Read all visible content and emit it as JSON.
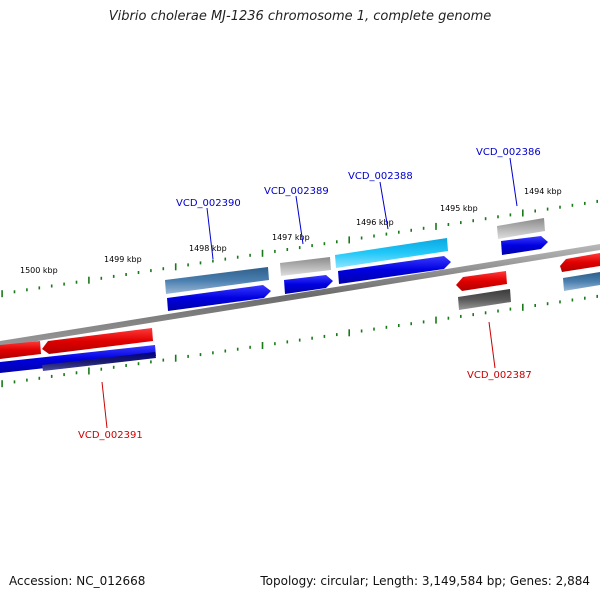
{
  "title": "Vibrio cholerae MJ-1236 chromosome 1, complete genome",
  "footer": {
    "accession": "Accession: NC_012668",
    "summary": "Topology: circular; Length: 3,149,584 bp; Genes: 2,884"
  },
  "tick_labels": [
    "1500 kbp",
    "1499 kbp",
    "1498 kbp",
    "1497 kbp",
    "1496 kbp",
    "1495 kbp",
    "1494 kbp"
  ],
  "genes": [
    {
      "id": "VCD_002390",
      "color": "#0000cc"
    },
    {
      "id": "VCD_002389",
      "color": "#0000cc"
    },
    {
      "id": "VCD_002388",
      "color": "#0000cc"
    },
    {
      "id": "VCD_002386",
      "color": "#0000cc"
    },
    {
      "id": "VCD_002387",
      "color": "#cc0000"
    },
    {
      "id": "VCD_002391",
      "color": "#cc0000"
    }
  ],
  "colors": {
    "forward_cds": "#0000ee",
    "reverse_cds": "#ee0000",
    "tick": "#1a7a1a",
    "backbone": "#808080"
  }
}
